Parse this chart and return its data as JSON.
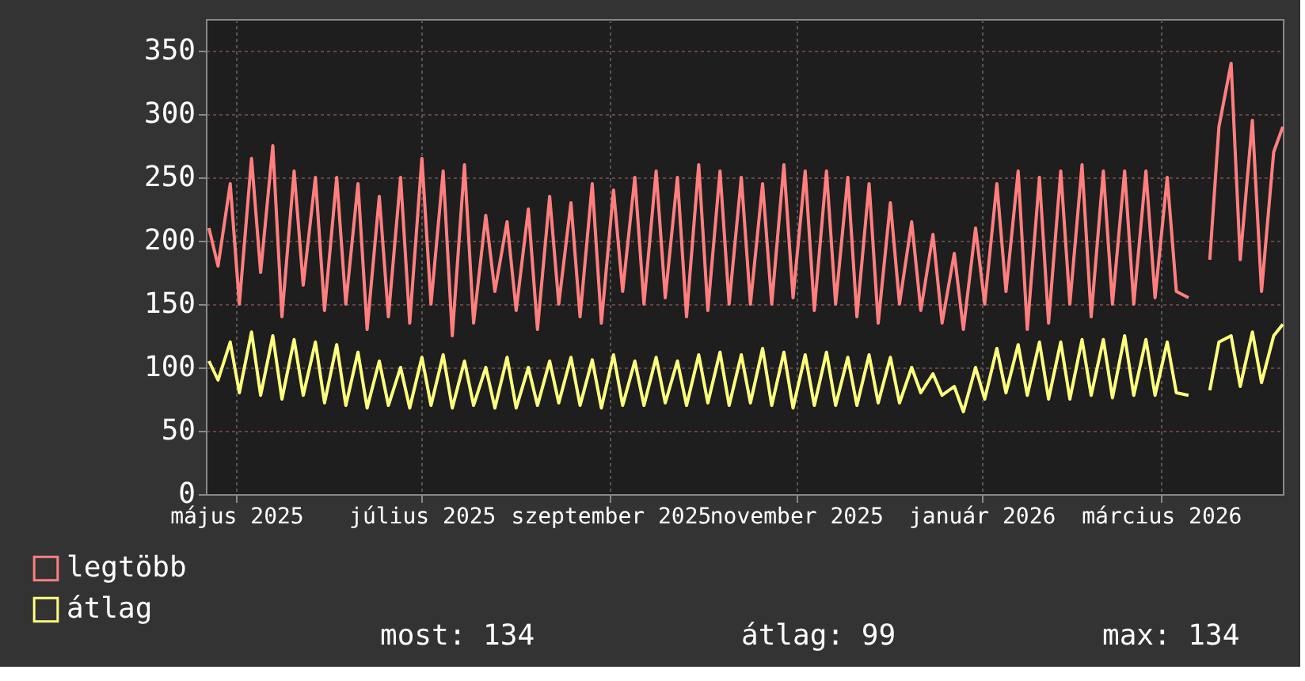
{
  "chart_data": {
    "type": "line",
    "x": [
      "2025-04-22",
      "2025-04-25",
      "2025-04-29",
      "2025-05-02",
      "2025-05-06",
      "2025-05-09",
      "2025-05-13",
      "2025-05-16",
      "2025-05-20",
      "2025-05-23",
      "2025-05-27",
      "2025-05-30",
      "2025-06-03",
      "2025-06-06",
      "2025-06-10",
      "2025-06-13",
      "2025-06-17",
      "2025-06-20",
      "2025-06-24",
      "2025-06-27",
      "2025-07-01",
      "2025-07-04",
      "2025-07-08",
      "2025-07-11",
      "2025-07-15",
      "2025-07-18",
      "2025-07-22",
      "2025-07-25",
      "2025-07-29",
      "2025-08-01",
      "2025-08-05",
      "2025-08-08",
      "2025-08-12",
      "2025-08-15",
      "2025-08-19",
      "2025-08-22",
      "2025-08-26",
      "2025-08-29",
      "2025-09-02",
      "2025-09-05",
      "2025-09-09",
      "2025-09-12",
      "2025-09-16",
      "2025-09-19",
      "2025-09-23",
      "2025-09-26",
      "2025-09-30",
      "2025-10-03",
      "2025-10-07",
      "2025-10-10",
      "2025-10-14",
      "2025-10-17",
      "2025-10-21",
      "2025-10-24",
      "2025-10-28",
      "2025-10-31",
      "2025-11-04",
      "2025-11-07",
      "2025-11-11",
      "2025-11-14",
      "2025-11-18",
      "2025-11-21",
      "2025-11-25",
      "2025-11-28",
      "2025-12-02",
      "2025-12-05",
      "2025-12-09",
      "2025-12-12",
      "2025-12-16",
      "2025-12-19",
      "2025-12-23",
      "2025-12-26",
      "2025-12-30",
      "2026-01-02",
      "2026-01-06",
      "2026-01-09",
      "2026-01-13",
      "2026-01-16",
      "2026-01-20",
      "2026-01-23",
      "2026-01-27",
      "2026-01-30",
      "2026-02-03",
      "2026-02-06",
      "2026-02-10",
      "2026-02-13",
      "2026-02-17",
      "2026-02-20",
      "2026-02-24",
      "2026-02-27",
      "2026-03-03",
      "2026-03-06",
      "2026-03-10",
      "2026-03-13",
      "2026-03-17",
      "2026-03-20",
      "2026-03-24",
      "2026-03-27",
      "2026-03-31",
      "2026-04-03",
      "2026-04-07",
      "2026-04-10"
    ],
    "series": [
      {
        "name": "legtöbb",
        "color": "#ff7f7f",
        "values": [
          210,
          180,
          245,
          150,
          265,
          175,
          275,
          140,
          255,
          165,
          250,
          145,
          250,
          150,
          245,
          130,
          235,
          140,
          250,
          135,
          265,
          150,
          255,
          125,
          260,
          135,
          220,
          160,
          215,
          145,
          225,
          130,
          235,
          150,
          230,
          140,
          245,
          135,
          240,
          160,
          250,
          150,
          255,
          155,
          250,
          140,
          260,
          145,
          255,
          150,
          250,
          150,
          245,
          150,
          260,
          155,
          255,
          145,
          255,
          150,
          250,
          140,
          245,
          135,
          230,
          150,
          215,
          145,
          205,
          135,
          190,
          130,
          210,
          150,
          245,
          160,
          255,
          130,
          250,
          135,
          255,
          150,
          260,
          140,
          255,
          150,
          255,
          150,
          255,
          155,
          250,
          160,
          155,
          null,
          185,
          290,
          340,
          185,
          295,
          160,
          270,
          290
        ]
      },
      {
        "name": "átlag",
        "color": "#ffff7f",
        "values": [
          105,
          90,
          120,
          80,
          128,
          78,
          125,
          75,
          122,
          78,
          120,
          72,
          118,
          70,
          112,
          68,
          105,
          70,
          100,
          68,
          108,
          70,
          110,
          68,
          105,
          70,
          100,
          68,
          108,
          68,
          100,
          70,
          105,
          72,
          108,
          70,
          106,
          68,
          110,
          70,
          105,
          70,
          108,
          72,
          105,
          70,
          110,
          72,
          112,
          70,
          110,
          72,
          115,
          70,
          112,
          68,
          110,
          70,
          112,
          70,
          108,
          70,
          110,
          72,
          108,
          72,
          100,
          80,
          95,
          78,
          85,
          65,
          100,
          75,
          115,
          80,
          118,
          78,
          120,
          75,
          120,
          75,
          122,
          78,
          122,
          76,
          125,
          78,
          122,
          78,
          120,
          80,
          78,
          null,
          82,
          120,
          125,
          85,
          128,
          88,
          125,
          134
        ]
      }
    ],
    "xlim": [
      "2025-04-21",
      "2026-04-10"
    ],
    "xticks": [
      {
        "value": "2025-05-01",
        "label": "május 2025"
      },
      {
        "value": "2025-07-01",
        "label": "július 2025"
      },
      {
        "value": "2025-09-01",
        "label": "szeptember 2025"
      },
      {
        "value": "2025-11-01",
        "label": "november 2025"
      },
      {
        "value": "2026-01-01",
        "label": "január 2026"
      },
      {
        "value": "2026-03-01",
        "label": "március 2026"
      }
    ],
    "ylim": [
      0,
      375
    ],
    "yticks": [
      0,
      50,
      100,
      150,
      200,
      250,
      300,
      350
    ],
    "grid": true,
    "legend": "bottom",
    "marker": "none",
    "line_style": "solid",
    "annotations": [
      "most: 134",
      "átlag: 99",
      "max: 134"
    ]
  }
}
